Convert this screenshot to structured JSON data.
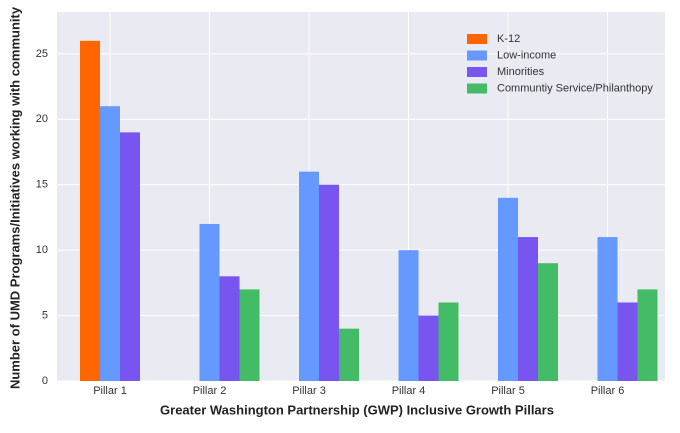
{
  "chart_data": {
    "type": "bar",
    "xlabel": "Greater Washington Partnership (GWP) Inclusive Growth Pillars",
    "ylabel": "Number of UMD Programs/Initiatives working with community",
    "categories": [
      "Pillar 1",
      "Pillar 2",
      "Pillar 3",
      "Pillar 4",
      "Pillar 5",
      "Pillar 6"
    ],
    "series": [
      {
        "name": "K-12",
        "color": "#ff6600",
        "values": [
          26,
          0,
          0,
          0,
          0,
          0
        ]
      },
      {
        "name": "Low-income",
        "color": "#6699ff",
        "values": [
          21,
          12,
          16,
          10,
          14,
          11
        ]
      },
      {
        "name": "Minorities",
        "color": "#7755ee",
        "values": [
          19,
          8,
          15,
          5,
          11,
          6
        ]
      },
      {
        "name": "Communtiy Service/Philanthopy",
        "color": "#44bb66",
        "values": [
          0,
          7,
          4,
          6,
          9,
          7
        ]
      }
    ],
    "ylim": [
      0,
      28.2
    ],
    "yticks": [
      0,
      5,
      10,
      15,
      20,
      25
    ],
    "grid": true,
    "legend": "upper right"
  }
}
